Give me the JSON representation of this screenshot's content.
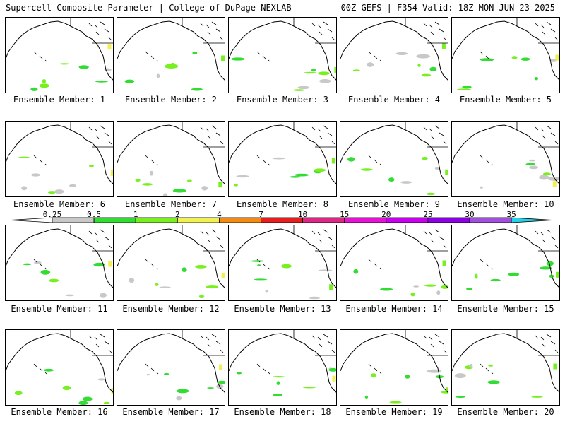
{
  "header": {
    "left": "Supercell Composite Parameter | College of DuPage NEXLAB",
    "right": "00Z GEFS | F354 Valid: 18Z MON JUN 23 2025"
  },
  "colorbar": {
    "ticks": [
      "0.25",
      "0.5",
      "1",
      "2",
      "4",
      "7",
      "10",
      "15",
      "20",
      "25",
      "30",
      "35"
    ],
    "colors": [
      "#c8c8c8",
      "#32dc32",
      "#78f020",
      "#f0f050",
      "#f08c14",
      "#e61e1e",
      "#dc2882",
      "#e614d2",
      "#c800f0",
      "#8c00e6",
      "#a050dc",
      "#28d2e6"
    ]
  },
  "panels": [
    {
      "label": "Ensemble Member: 1"
    },
    {
      "label": "Ensemble Member: 2"
    },
    {
      "label": "Ensemble Member: 3"
    },
    {
      "label": "Ensemble Member: 4"
    },
    {
      "label": "Ensemble Member: 5"
    },
    {
      "label": "Ensemble Member: 6"
    },
    {
      "label": "Ensemble Member: 7"
    },
    {
      "label": "Ensemble Member: 8"
    },
    {
      "label": "Ensemble Member: 9"
    },
    {
      "label": "Ensemble Member: 10"
    },
    {
      "label": "Ensemble Member: 11"
    },
    {
      "label": "Ensemble Member: 12"
    },
    {
      "label": "Ensemble Member: 13"
    },
    {
      "label": "Ensemble Member: 14"
    },
    {
      "label": "Ensemble Member: 15"
    },
    {
      "label": "Ensemble Member: 16"
    },
    {
      "label": "Ensemble Member: 17"
    },
    {
      "label": "Ensemble Member: 18"
    },
    {
      "label": "Ensemble Member: 19"
    },
    {
      "label": "Ensemble Member: 20"
    }
  ]
}
